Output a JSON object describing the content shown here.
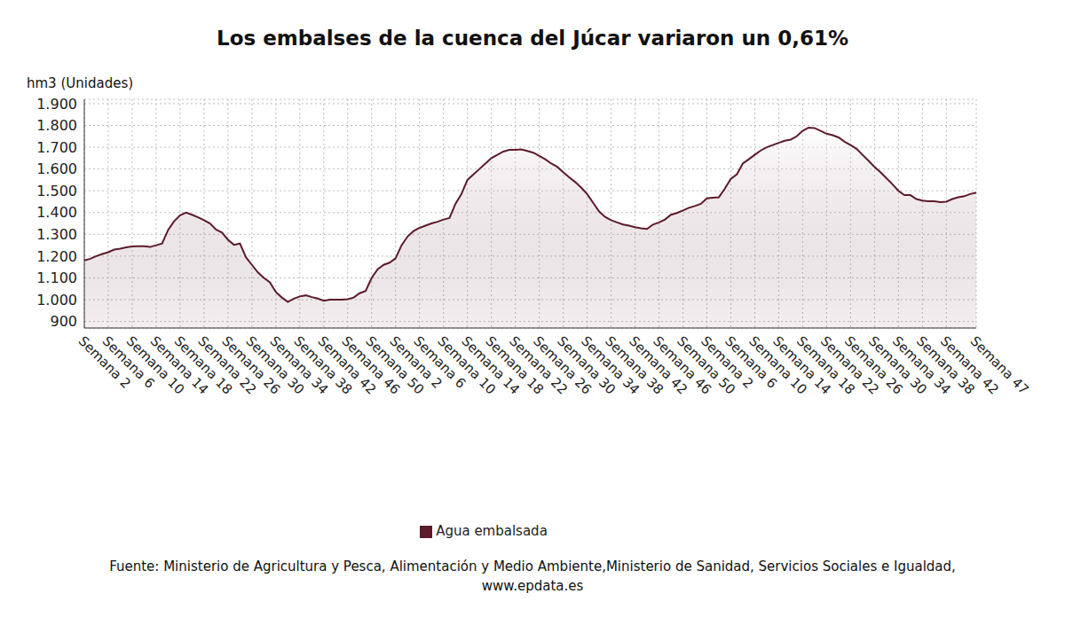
{
  "chart_data": {
    "type": "area",
    "title": "Los embalses de la cuenca del Júcar variaron un 0,61%",
    "y_label": "hm3 (Unidades)",
    "source": [
      "Fuente: Ministerio de Agricultura y Pesca, Alimentación y Medio Ambiente,Ministerio de Sanidad, Servicios Sociales e Igualdad,",
      "www.epdata.es"
    ],
    "categories": [
      "Semana 2",
      null,
      null,
      null,
      "Semana 6",
      null,
      null,
      null,
      "Semana 10",
      null,
      null,
      null,
      "Semana 14",
      null,
      null,
      null,
      "Semana 18",
      null,
      null,
      null,
      "Semana 22",
      null,
      null,
      null,
      "Semana 26",
      null,
      null,
      null,
      "Semana 30",
      null,
      null,
      null,
      "Semana 34",
      null,
      null,
      null,
      "Semana 38",
      null,
      null,
      null,
      "Semana 42",
      null,
      null,
      null,
      "Semana 46",
      null,
      null,
      null,
      "Semana 50",
      null,
      null,
      null,
      "Semana 2",
      null,
      null,
      null,
      "Semana 6",
      null,
      null,
      null,
      "Semana 10",
      null,
      null,
      null,
      "Semana 14",
      null,
      null,
      null,
      "Semana 18",
      null,
      null,
      null,
      "Semana 22",
      null,
      null,
      null,
      "Semana 26",
      null,
      null,
      null,
      "Semana 30",
      null,
      null,
      null,
      "Semana 34",
      null,
      null,
      null,
      "Semana 38",
      null,
      null,
      null,
      "Semana 42",
      null,
      null,
      null,
      "Semana 46",
      null,
      null,
      null,
      "Semana 50",
      null,
      null,
      null,
      "Semana 2",
      null,
      null,
      null,
      "Semana 6",
      null,
      null,
      null,
      "Semana 10",
      null,
      null,
      null,
      "Semana 14",
      null,
      null,
      null,
      "Semana 18",
      null,
      null,
      null,
      "Semana 22",
      null,
      null,
      null,
      "Semana 26",
      null,
      null,
      null,
      "Semana 30",
      null,
      null,
      null,
      "Semana 34",
      null,
      null,
      null,
      "Semana 38",
      null,
      null,
      null,
      "Semana 42",
      null,
      null,
      null,
      null,
      "Semana 47"
    ],
    "series": [
      {
        "name": "Agua embalsada",
        "color": "#5c1a2b",
        "values": [
          1180,
          1188,
          1200,
          1210,
          1218,
          1230,
          1234,
          1240,
          1244,
          1245,
          1245,
          1242,
          1250,
          1258,
          1320,
          1360,
          1388,
          1400,
          1390,
          1378,
          1365,
          1350,
          1322,
          1308,
          1275,
          1252,
          1258,
          1195,
          1160,
          1125,
          1100,
          1080,
          1035,
          1010,
          990,
          1005,
          1015,
          1020,
          1012,
          1005,
          995,
          1000,
          1000,
          1000,
          1002,
          1010,
          1030,
          1040,
          1100,
          1140,
          1160,
          1170,
          1190,
          1250,
          1290,
          1315,
          1330,
          1340,
          1350,
          1358,
          1368,
          1375,
          1440,
          1485,
          1550,
          1575,
          1600,
          1625,
          1650,
          1665,
          1680,
          1688,
          1688,
          1690,
          1683,
          1675,
          1660,
          1645,
          1625,
          1610,
          1585,
          1562,
          1540,
          1515,
          1485,
          1445,
          1405,
          1380,
          1365,
          1355,
          1345,
          1340,
          1333,
          1328,
          1325,
          1345,
          1355,
          1368,
          1390,
          1398,
          1410,
          1422,
          1430,
          1440,
          1465,
          1468,
          1470,
          1510,
          1555,
          1575,
          1625,
          1645,
          1665,
          1685,
          1700,
          1710,
          1720,
          1730,
          1735,
          1750,
          1775,
          1790,
          1788,
          1775,
          1762,
          1755,
          1745,
          1725,
          1710,
          1693,
          1665,
          1638,
          1610,
          1585,
          1558,
          1530,
          1500,
          1480,
          1480,
          1462,
          1455,
          1452,
          1452,
          1448,
          1450,
          1462,
          1470,
          1475,
          1485,
          1492
        ]
      }
    ],
    "ylim": [
      870,
      1920
    ],
    "yticks": [
      900,
      {
        "value": 1000,
        "label": "1.000"
      },
      {
        "value": 1100,
        "label": "1.100"
      },
      {
        "value": 1200,
        "label": "1.200"
      },
      {
        "value": 1300,
        "label": "1.300"
      },
      {
        "value": 1400,
        "label": "1.400"
      },
      {
        "value": 1500,
        "label": "1.500"
      },
      {
        "value": 1600,
        "label": "1.600"
      },
      {
        "value": 1700,
        "label": "1.700"
      },
      {
        "value": 1800,
        "label": "1.800"
      },
      {
        "value": 1900,
        "label": "1.900"
      }
    ],
    "grid": true,
    "legend": "bottom"
  }
}
